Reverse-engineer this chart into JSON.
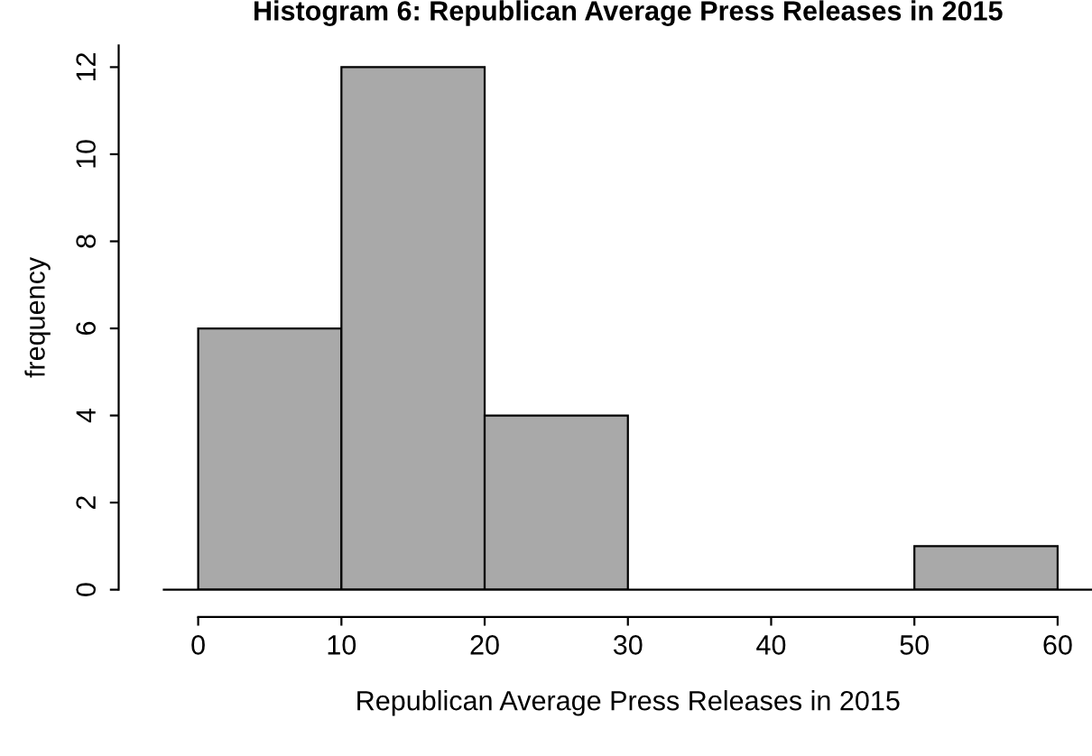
{
  "chart_data": {
    "type": "histogram",
    "title": "Histogram 6: Republican Average Press Releases in 2015",
    "xlabel": "Republican Average Press Releases in 2015",
    "ylabel": "frequency",
    "bins": [
      0,
      10,
      20,
      30,
      40,
      50,
      60
    ],
    "values": [
      6,
      12,
      4,
      0,
      0,
      1
    ],
    "color": "#a9a9a9",
    "xlim": [
      -2.4,
      62.4
    ],
    "ylim": [
      0,
      12.5
    ],
    "xticks": [
      0,
      10,
      20,
      30,
      40,
      50,
      60
    ],
    "yticks": [
      0,
      2,
      4,
      6,
      8,
      10,
      12
    ],
    "grid": false,
    "legend": false
  }
}
